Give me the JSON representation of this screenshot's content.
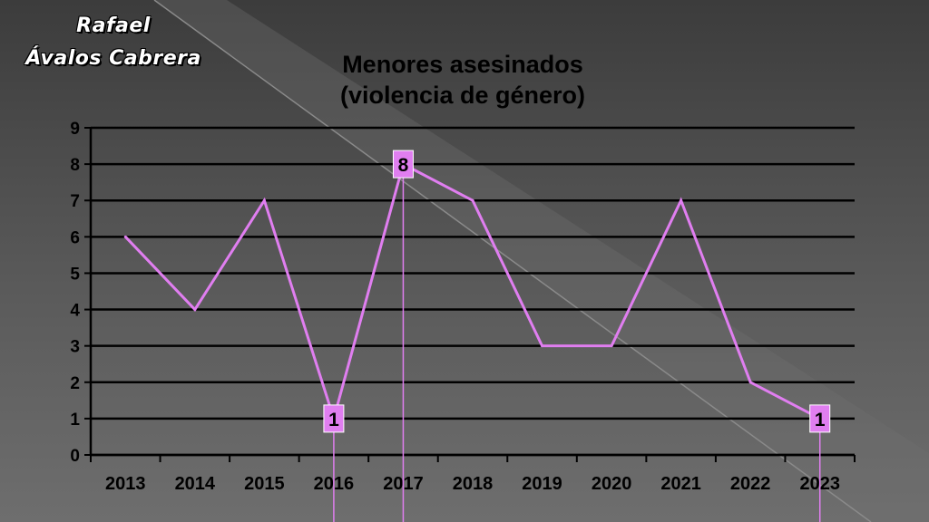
{
  "author": {
    "line1": "Rafael",
    "line2": "Ávalos Cabrera"
  },
  "chart_data": {
    "type": "line",
    "title": "Menores asesinados",
    "subtitle": "(violencia de género)",
    "x": [
      "2013",
      "2014",
      "2015",
      "2016",
      "2017",
      "2018",
      "2019",
      "2020",
      "2021",
      "2022",
      "2023"
    ],
    "series": [
      {
        "values": [
          6,
          4,
          7,
          1,
          8,
          7,
          3,
          3,
          7,
          2,
          1
        ],
        "color": "#e07ef0"
      }
    ],
    "ylim": [
      0,
      9
    ],
    "yticks": [
      "0",
      "1",
      "2",
      "3",
      "4",
      "5",
      "6",
      "7",
      "8",
      "9"
    ],
    "grid": true,
    "data_labels": [
      {
        "x": "2016",
        "value": 1,
        "text": "1"
      },
      {
        "x": "2017",
        "value": 8,
        "text": "8"
      },
      {
        "x": "2023",
        "value": 1,
        "text": "1"
      }
    ],
    "label_bg": "#e07ef0",
    "gridline_color": "#000000",
    "background_accent": "#707070"
  }
}
